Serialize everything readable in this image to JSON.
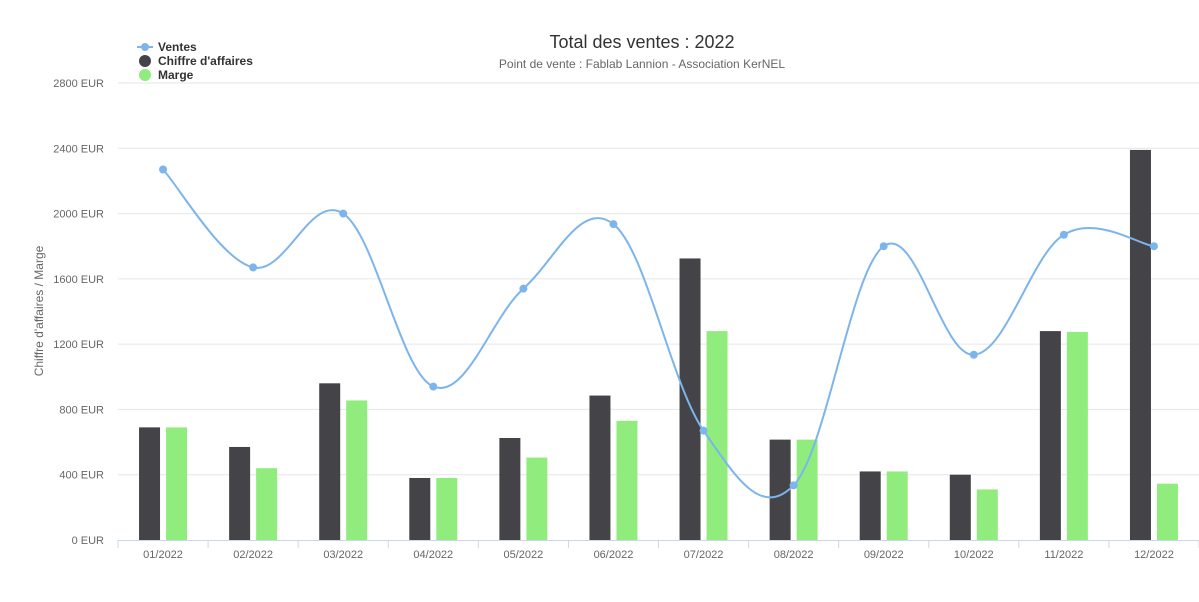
{
  "chart_data": {
    "type": "bar",
    "title": "Total des ventes : 2022",
    "subtitle": "Point de vente : Fablab Lannion - Association KerNEL",
    "xlabel": "",
    "ylabel": "Chiffre d'affaires / Marge",
    "ylim": [
      0,
      2800
    ],
    "yticks": [
      0,
      400,
      800,
      1200,
      1600,
      2000,
      2400,
      2800
    ],
    "ytick_suffix": " EUR",
    "grid": true,
    "legend_position": "top-left",
    "categories": [
      "01/2022",
      "02/2022",
      "03/2022",
      "04/2022",
      "05/2022",
      "06/2022",
      "07/2022",
      "08/2022",
      "09/2022",
      "10/2022",
      "11/2022",
      "12/2022"
    ],
    "series": [
      {
        "name": "Ventes",
        "type": "line",
        "color": "#7cb5ec",
        "values": [
          2270,
          1670,
          2000,
          940,
          1540,
          1935,
          670,
          335,
          1800,
          1135,
          1870,
          1800
        ]
      },
      {
        "name": "Chiffre d'affaires",
        "type": "bar",
        "color": "#434348",
        "values": [
          690,
          570,
          960,
          380,
          625,
          885,
          1725,
          615,
          420,
          400,
          1280,
          2390
        ]
      },
      {
        "name": "Marge",
        "type": "bar",
        "color": "#90ed7d",
        "values": [
          690,
          440,
          855,
          380,
          505,
          730,
          1280,
          615,
          420,
          310,
          1275,
          345
        ]
      }
    ]
  }
}
